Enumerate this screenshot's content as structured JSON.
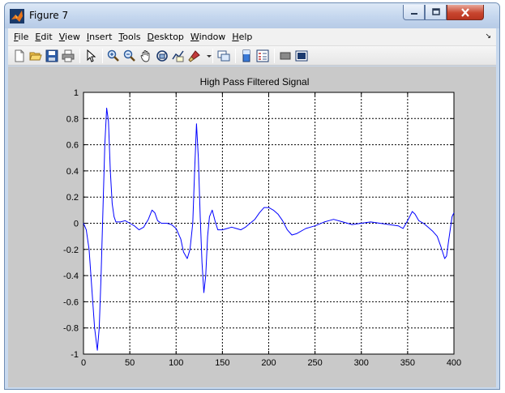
{
  "window": {
    "title": "Figure 7"
  },
  "menu": {
    "items": [
      "File",
      "Edit",
      "View",
      "Insert",
      "Tools",
      "Desktop",
      "Window",
      "Help"
    ]
  },
  "toolbar": {
    "icons": [
      "new-figure-icon",
      "open-file-icon",
      "save-icon",
      "print-icon",
      "pointer-icon",
      "zoom-in-icon",
      "zoom-out-icon",
      "pan-icon",
      "rotate-3d-icon",
      "data-cursor-icon",
      "brush-icon",
      "link-plot-icon",
      "colorbar-icon",
      "legend-icon",
      "hide-plot-tools-icon",
      "show-plot-tools-icon"
    ]
  },
  "colors": {
    "line": "#0000ff",
    "figure_bg": "#c9c9c9",
    "axes_bg": "#ffffff"
  },
  "chart_data": {
    "type": "line",
    "title": "High Pass Filtered Signal",
    "xlabel": "",
    "ylabel": "",
    "xlim": [
      0,
      400
    ],
    "ylim": [
      -1,
      1
    ],
    "xticks": [
      0,
      50,
      100,
      150,
      200,
      250,
      300,
      350,
      400
    ],
    "yticks": [
      -1,
      -0.8,
      -0.6,
      -0.4,
      -0.2,
      0,
      0.2,
      0.4,
      0.6,
      0.8,
      1
    ],
    "xtick_labels": [
      "0",
      "50",
      "100",
      "150",
      "200",
      "250",
      "300",
      "350",
      "400"
    ],
    "ytick_labels": [
      "-1",
      "-0.8",
      "-0.6",
      "-0.4",
      "-0.2",
      "0",
      "0.2",
      "0.4",
      "0.6",
      "0.8",
      "1"
    ],
    "grid": true,
    "series": [
      {
        "x": [
          0,
          3,
          6,
          9,
          12,
          15,
          17,
          19,
          21,
          23,
          25,
          27,
          29,
          31,
          33,
          35,
          40,
          45,
          50,
          55,
          60,
          65,
          70,
          74,
          77,
          80,
          84,
          90,
          95,
          100,
          105,
          108,
          112,
          115,
          118,
          120,
          122,
          124,
          126,
          128,
          130,
          132,
          134,
          136,
          139,
          142,
          145,
          150,
          155,
          160,
          165,
          170,
          175,
          180,
          185,
          190,
          195,
          200,
          205,
          210,
          215,
          220,
          225,
          230,
          240,
          250,
          260,
          265,
          270,
          280,
          290,
          300,
          310,
          320,
          330,
          340,
          345,
          350,
          355,
          358,
          362,
          367,
          372,
          377,
          382,
          386,
          390,
          392,
          394,
          396,
          398,
          400
        ],
        "y": [
          0,
          -0.05,
          -0.2,
          -0.5,
          -0.8,
          -0.97,
          -0.8,
          -0.4,
          0.1,
          0.6,
          0.88,
          0.78,
          0.4,
          0.15,
          0.05,
          0.01,
          0.01,
          0.02,
          0.0,
          -0.02,
          -0.05,
          -0.03,
          0.03,
          0.1,
          0.08,
          0.02,
          0.0,
          0.0,
          -0.01,
          -0.04,
          -0.12,
          -0.22,
          -0.27,
          -0.2,
          0.0,
          0.4,
          0.76,
          0.5,
          0.05,
          -0.3,
          -0.53,
          -0.4,
          -0.1,
          0.05,
          0.1,
          0.02,
          -0.05,
          -0.05,
          -0.04,
          -0.03,
          -0.04,
          -0.05,
          -0.03,
          0.0,
          0.03,
          0.08,
          0.12,
          0.12,
          0.1,
          0.07,
          0.02,
          -0.05,
          -0.09,
          -0.08,
          -0.04,
          -0.02,
          0.01,
          0.02,
          0.03,
          0.01,
          -0.01,
          0.0,
          0.01,
          0.0,
          -0.01,
          -0.02,
          -0.04,
          0.02,
          0.09,
          0.07,
          0.02,
          0.0,
          -0.03,
          -0.06,
          -0.1,
          -0.18,
          -0.27,
          -0.25,
          -0.15,
          -0.05,
          0.05,
          0.08
        ]
      }
    ]
  }
}
